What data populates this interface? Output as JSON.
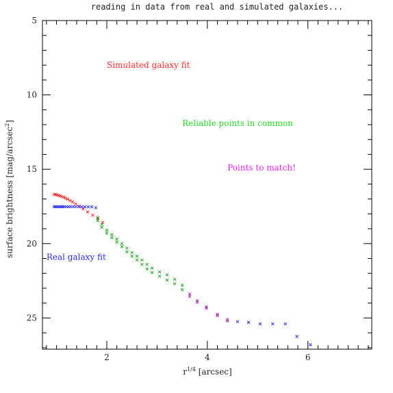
{
  "chart_data": {
    "type": "scatter",
    "title": "reading in data from real and simulated galaxies...",
    "xlabel": "r",
    "xlabel_sup": "1/4",
    "xlabel_unit": " [arcsec]",
    "ylabel_main": "surface brightness [mag/arcsec",
    "ylabel_sup": "2",
    "ylabel_end": "]",
    "xlim": [
      0.72,
      7.27
    ],
    "ylim": [
      5,
      27.1
    ],
    "y_inverted": true,
    "x_ticks": [
      2,
      4,
      6
    ],
    "y_ticks": [
      5,
      10,
      15,
      20,
      25
    ],
    "annotations": [
      {
        "text": "Simulated galaxy fit",
        "x": 2.0,
        "y": 8.0,
        "color": "#ff2a2a"
      },
      {
        "text": "Reliable points in common",
        "x": 3.5,
        "y": 11.9,
        "color": "#22dd22"
      },
      {
        "text": "Points to match!",
        "x": 4.4,
        "y": 14.9,
        "color": "#ee22ee"
      },
      {
        "text": "Real galaxy fit",
        "x": 0.8,
        "y": 20.9,
        "color": "#2a2aff"
      }
    ],
    "series": [
      {
        "color": "#ff2a2a",
        "x": [
          0.95,
          0.98,
          1.01,
          1.04,
          1.07,
          1.1,
          1.14,
          1.18,
          1.22,
          1.27,
          1.32,
          1.38,
          1.45,
          1.53,
          1.62,
          1.72,
          1.82,
          1.92
        ],
        "y": [
          16.68,
          16.7,
          16.73,
          16.76,
          16.79,
          16.83,
          16.88,
          16.94,
          17.01,
          17.1,
          17.2,
          17.33,
          17.48,
          17.66,
          17.87,
          18.09,
          18.33,
          18.58
        ]
      },
      {
        "color": "#2a2aff",
        "x": [
          0.95,
          0.98,
          1.01,
          1.04,
          1.07,
          1.1,
          1.13,
          1.16,
          1.2,
          1.24,
          1.28,
          1.33,
          1.38,
          1.44,
          1.5,
          1.56,
          1.63,
          1.7,
          1.78
        ],
        "y": [
          17.52,
          17.52,
          17.52,
          17.52,
          17.52,
          17.52,
          17.52,
          17.52,
          17.52,
          17.52,
          17.52,
          17.52,
          17.52,
          17.52,
          17.53,
          17.53,
          17.53,
          17.53,
          17.59
        ]
      },
      {
        "color": "#22aa22",
        "x": [
          1.82,
          1.9,
          2.0,
          2.1,
          2.2,
          2.3,
          2.4,
          2.5,
          2.6,
          2.7,
          2.8,
          2.9,
          3.05,
          3.2,
          3.35,
          3.5
        ],
        "y": [
          18.25,
          18.7,
          19.1,
          19.4,
          19.7,
          20.0,
          20.3,
          20.6,
          20.85,
          21.1,
          21.4,
          21.65,
          21.9,
          22.1,
          22.4,
          22.8
        ]
      },
      {
        "color": "#22aa22",
        "x": [
          1.82,
          1.9,
          2.0,
          2.1,
          2.2,
          2.3,
          2.4,
          2.5,
          2.6,
          2.7,
          2.8,
          2.9,
          3.05,
          3.2,
          3.35,
          3.5
        ],
        "y": [
          18.45,
          18.9,
          19.3,
          19.6,
          19.9,
          20.2,
          20.55,
          20.85,
          21.1,
          21.4,
          21.7,
          21.95,
          22.2,
          22.45,
          22.7,
          23.1
        ]
      },
      {
        "color": "#aa33aa",
        "x": [
          3.65,
          3.8,
          3.98,
          4.2,
          4.4
        ],
        "y": [
          23.4,
          23.85,
          24.25,
          24.75,
          25.1
        ]
      },
      {
        "color": "#aa33aa",
        "x": [
          3.65,
          3.8,
          3.98,
          4.2,
          4.4
        ],
        "y": [
          23.55,
          23.95,
          24.35,
          24.85,
          25.2
        ]
      },
      {
        "color": "#2a2aff",
        "x": [
          4.6,
          4.82,
          5.05,
          5.3,
          5.55,
          5.78,
          6.05
        ],
        "y": [
          25.25,
          25.3,
          25.4,
          25.4,
          25.4,
          26.25,
          26.8
        ]
      }
    ]
  }
}
